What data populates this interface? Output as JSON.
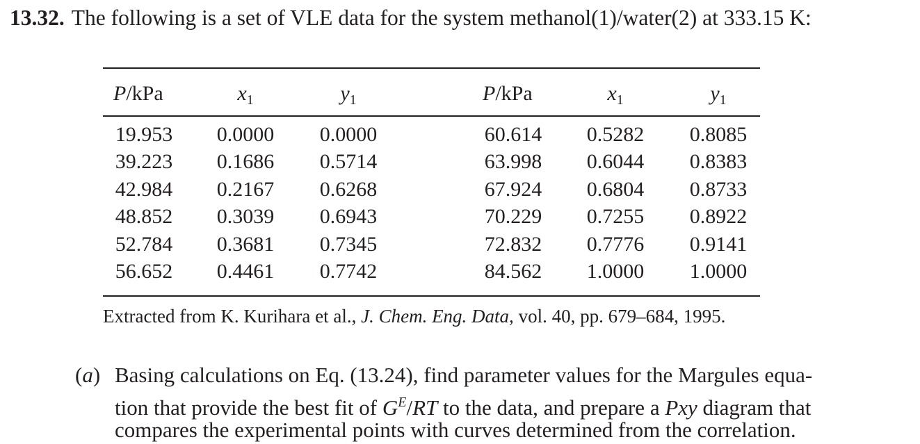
{
  "problem": {
    "number": "13.32.",
    "statement": "The following is a set of VLE data for the system methanol(1)/water(2) at 333.15 K:"
  },
  "table": {
    "headers": {
      "pressure": {
        "var": "P",
        "unit": "/kPa"
      },
      "x": {
        "var": "x",
        "sub": "1"
      },
      "y": {
        "var": "y",
        "sub": "1"
      }
    },
    "left_rows": [
      [
        "19.953",
        "0.0000",
        "0.0000"
      ],
      [
        "39.223",
        "0.1686",
        "0.5714"
      ],
      [
        "42.984",
        "0.2167",
        "0.6268"
      ],
      [
        "48.852",
        "0.3039",
        "0.6943"
      ],
      [
        "52.784",
        "0.3681",
        "0.7345"
      ],
      [
        "56.652",
        "0.4461",
        "0.7742"
      ]
    ],
    "right_rows": [
      [
        "60.614",
        "0.5282",
        "0.8085"
      ],
      [
        "63.998",
        "0.6044",
        "0.8383"
      ],
      [
        "67.924",
        "0.6804",
        "0.8733"
      ],
      [
        "70.229",
        "0.7255",
        "0.8922"
      ],
      [
        "72.832",
        "0.7776",
        "0.9141"
      ],
      [
        "84.562",
        "1.0000",
        "1.0000"
      ]
    ]
  },
  "source": {
    "prefix": "Extracted from K. Kurihara et al., ",
    "journal": "J. Chem. Eng. Data,",
    "suffix": " vol. 40, pp. 679–684, 1995."
  },
  "part_a": {
    "label_open": "(",
    "label_letter": "a",
    "label_close": ")",
    "line1": "Basing calculations on Eq. (13.24), find parameter values for the Margules equa-",
    "line2_pre": "tion that provide the best fit of ",
    "line2_G": "G",
    "line2_sup": "E",
    "line2_slash": "/",
    "line2_RT": "RT",
    "line2_mid": " to the data, and prepare a ",
    "line2_Pxy": "Pxy",
    "line2_post": " diagram that",
    "line3": "compares the experimental points with curves determined from the correlation."
  }
}
